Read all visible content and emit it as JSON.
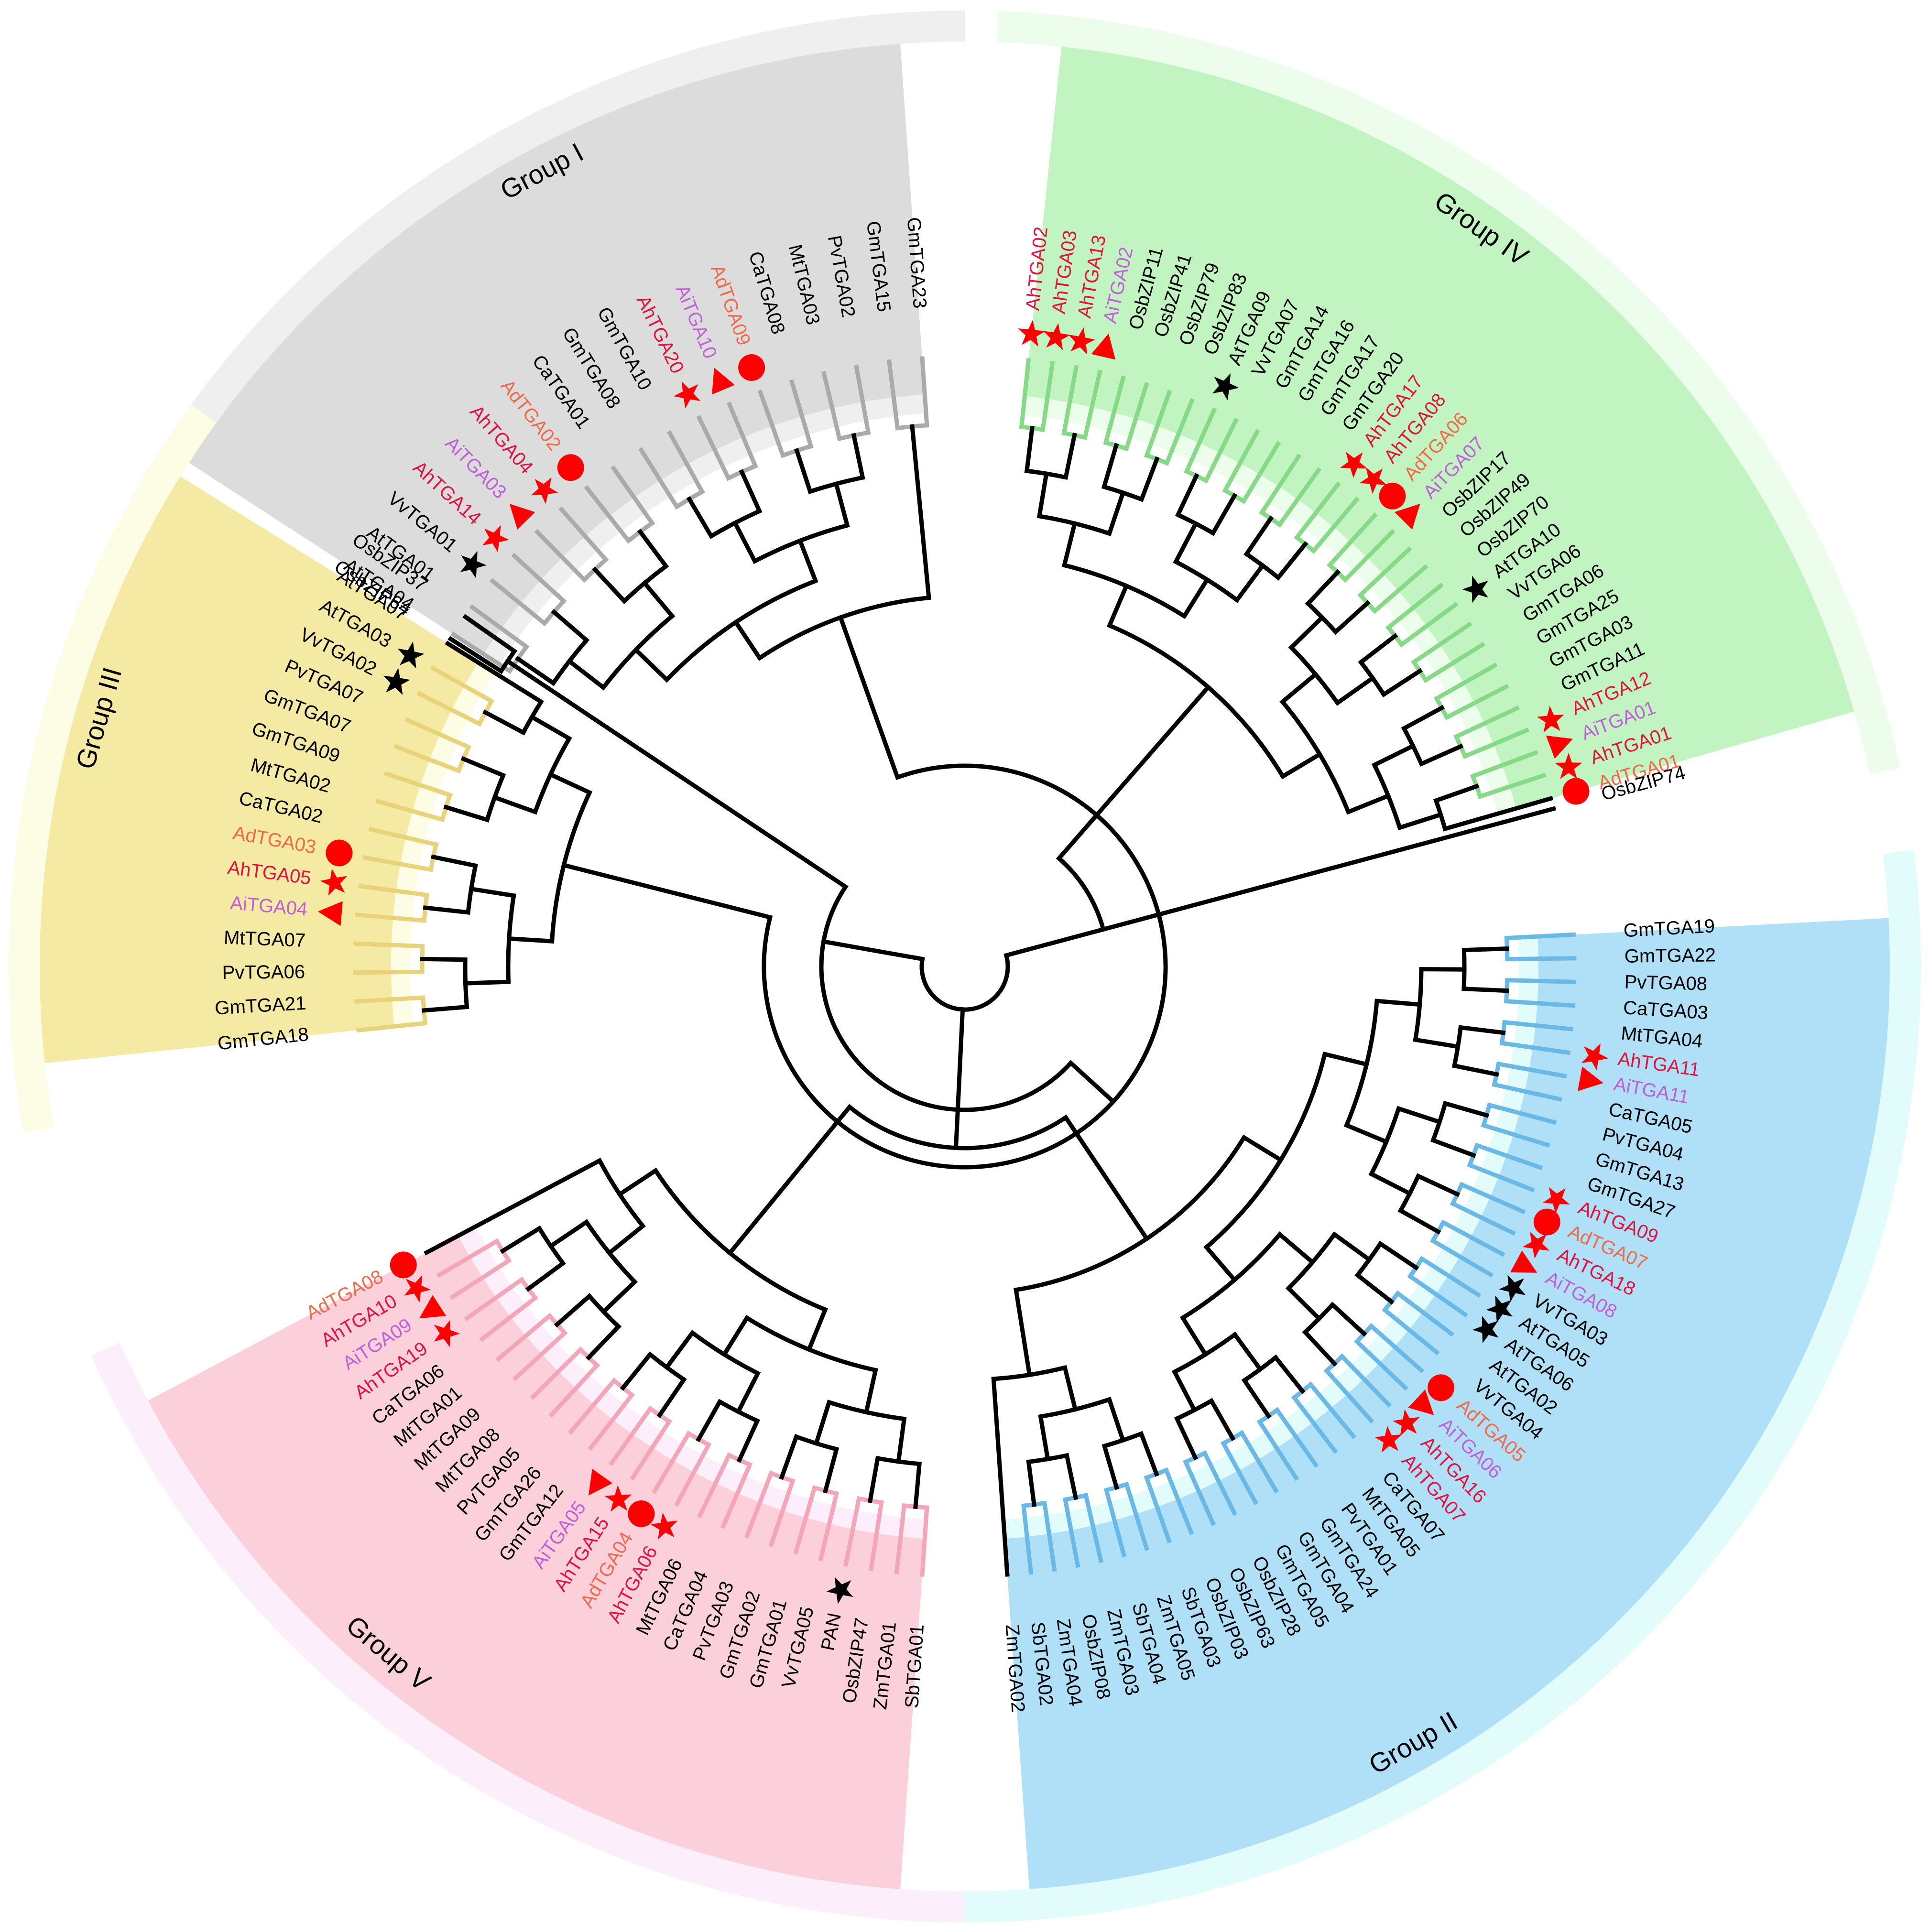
{
  "colors": {
    "Ah": "#e0123e",
    "Ad": "#f06a4a",
    "Ai": "#c060d8",
    "other": "#000000",
    "marker_red": "#ff0000",
    "marker_black": "#000000"
  },
  "groups": [
    {
      "id": "I",
      "label": "Group I",
      "outer_fill": "#efefef",
      "inner_fill": "#dcdcdc",
      "branch": "#aaaaaa",
      "leaves": [
        {
          "name": "AtTGA04",
          "m": ""
        },
        {
          "name": "AtTGA01",
          "m": ""
        },
        {
          "name": "VvTGA01",
          "m": "bstar"
        },
        {
          "name": "AhTGA14",
          "m": "star"
        },
        {
          "name": "AiTGA03",
          "m": "tri"
        },
        {
          "name": "AhTGA04",
          "m": "star"
        },
        {
          "name": "AdTGA02",
          "m": "circle"
        },
        {
          "name": "CaTGA01",
          "m": ""
        },
        {
          "name": "GmTGA08",
          "m": ""
        },
        {
          "name": "GmTGA10",
          "m": ""
        },
        {
          "name": "AhTGA20",
          "m": "star"
        },
        {
          "name": "AiTGA10",
          "m": "tri"
        },
        {
          "name": "AdTGA09",
          "m": "circle"
        },
        {
          "name": "CaTGA08",
          "m": ""
        },
        {
          "name": "MtTGA03",
          "m": ""
        },
        {
          "name": "PvTGA02",
          "m": ""
        },
        {
          "name": "GmTGA15",
          "m": ""
        },
        {
          "name": "GmTGA23",
          "m": ""
        }
      ]
    },
    {
      "id": "IV",
      "label": "Group IV",
      "outer_fill": "#ecfdec",
      "inner_fill": "#c2f4c2",
      "branch": "#86d986",
      "leaves": [
        {
          "name": "AhTGA02",
          "m": "star"
        },
        {
          "name": "AhTGA03",
          "m": "star"
        },
        {
          "name": "AhTGA13",
          "m": "star"
        },
        {
          "name": "AiTGA02",
          "m": "tri"
        },
        {
          "name": "OsbZIP11",
          "m": ""
        },
        {
          "name": "OsbZIP41",
          "m": ""
        },
        {
          "name": "OsbZIP79",
          "m": ""
        },
        {
          "name": "OsbZIP83",
          "m": ""
        },
        {
          "name": "AtTGA09",
          "m": "bstar"
        },
        {
          "name": "VvTGA07",
          "m": ""
        },
        {
          "name": "GmTGA14",
          "m": ""
        },
        {
          "name": "GmTGA16",
          "m": ""
        },
        {
          "name": "GmTGA17",
          "m": ""
        },
        {
          "name": "GmTGA20",
          "m": ""
        },
        {
          "name": "AhTGA17",
          "m": "star"
        },
        {
          "name": "AhTGA08",
          "m": "star"
        },
        {
          "name": "AdTGA06",
          "m": "circle"
        },
        {
          "name": "AiTGA07",
          "m": "tri"
        },
        {
          "name": "OsbZIP17",
          "m": ""
        },
        {
          "name": "OsbZIP49",
          "m": ""
        },
        {
          "name": "OsbZIP70",
          "m": ""
        },
        {
          "name": "AtTGA10",
          "m": "bstar"
        },
        {
          "name": "VvTGA06",
          "m": ""
        },
        {
          "name": "GmTGA06",
          "m": ""
        },
        {
          "name": "GmTGA25",
          "m": ""
        },
        {
          "name": "GmTGA03",
          "m": ""
        },
        {
          "name": "GmTGA11",
          "m": ""
        },
        {
          "name": "AhTGA12",
          "m": "star"
        },
        {
          "name": "AiTGA01",
          "m": "tri"
        },
        {
          "name": "AhTGA01",
          "m": "star"
        },
        {
          "name": "AdTGA01",
          "m": "circle"
        }
      ]
    },
    {
      "id": "II",
      "label": "Group II",
      "outer_fill": "#e2fcfc",
      "inner_fill": "#b0e0f8",
      "branch": "#6ab8e6",
      "leaves": [
        {
          "name": "GmTGA19",
          "m": ""
        },
        {
          "name": "GmTGA22",
          "m": ""
        },
        {
          "name": "PvTGA08",
          "m": ""
        },
        {
          "name": "CaTGA03",
          "m": ""
        },
        {
          "name": "MtTGA04",
          "m": ""
        },
        {
          "name": "AhTGA11",
          "m": "star"
        },
        {
          "name": "AiTGA11",
          "m": "tri"
        },
        {
          "name": "CaTGA05",
          "m": ""
        },
        {
          "name": "PvTGA04",
          "m": ""
        },
        {
          "name": "GmTGA13",
          "m": ""
        },
        {
          "name": "GmTGA27",
          "m": ""
        },
        {
          "name": "AhTGA09",
          "m": "star"
        },
        {
          "name": "AdTGA07",
          "m": "circle"
        },
        {
          "name": "AhTGA18",
          "m": "star"
        },
        {
          "name": "AiTGA08",
          "m": "tri"
        },
        {
          "name": "VvTGA03",
          "m": "bstar"
        },
        {
          "name": "AtTGA05",
          "m": "bstar"
        },
        {
          "name": "AtTGA06",
          "m": "bstar"
        },
        {
          "name": "AtTGA02",
          "m": ""
        },
        {
          "name": "VvTGA04",
          "m": ""
        },
        {
          "name": "AdTGA05",
          "m": "circle"
        },
        {
          "name": "AiTGA06",
          "m": "tri"
        },
        {
          "name": "AhTGA16",
          "m": "star"
        },
        {
          "name": "AhTGA07",
          "m": "star"
        },
        {
          "name": "CaTGA07",
          "m": ""
        },
        {
          "name": "MtTGA05",
          "m": ""
        },
        {
          "name": "PvTGA01",
          "m": ""
        },
        {
          "name": "GmTGA24",
          "m": ""
        },
        {
          "name": "GmTGA04",
          "m": ""
        },
        {
          "name": "GmTGA05",
          "m": ""
        },
        {
          "name": "OsbZIP28",
          "m": ""
        },
        {
          "name": "OsbZIP63",
          "m": ""
        },
        {
          "name": "OsbZIP03",
          "m": ""
        },
        {
          "name": "SbTGA03",
          "m": ""
        },
        {
          "name": "ZmTGA05",
          "m": ""
        },
        {
          "name": "SbTGA04",
          "m": ""
        },
        {
          "name": "ZmTGA03",
          "m": ""
        },
        {
          "name": "OsbZIP08",
          "m": ""
        },
        {
          "name": "ZmTGA04",
          "m": ""
        },
        {
          "name": "SbTGA02",
          "m": ""
        },
        {
          "name": "ZmTGA02",
          "m": ""
        }
      ]
    },
    {
      "id": "V",
      "label": "Group V",
      "outer_fill": "#fdeefb",
      "inner_fill": "#fbd0da",
      "branch": "#f2a6b8",
      "leaves": [
        {
          "name": "SbTGA01",
          "m": ""
        },
        {
          "name": "ZmTGA01",
          "m": ""
        },
        {
          "name": "OsbZIP47",
          "m": ""
        },
        {
          "name": "PAN",
          "m": "bstar"
        },
        {
          "name": "VvTGA05",
          "m": ""
        },
        {
          "name": "GmTGA01",
          "m": ""
        },
        {
          "name": "GmTGA02",
          "m": ""
        },
        {
          "name": "PvTGA03",
          "m": ""
        },
        {
          "name": "CaTGA04",
          "m": ""
        },
        {
          "name": "MtTGA06",
          "m": ""
        },
        {
          "name": "AhTGA06",
          "m": "star"
        },
        {
          "name": "AdTGA04",
          "m": "circle"
        },
        {
          "name": "AhTGA15",
          "m": "star"
        },
        {
          "name": "AiTGA05",
          "m": "tri"
        },
        {
          "name": "GmTGA12",
          "m": ""
        },
        {
          "name": "GmTGA26",
          "m": ""
        },
        {
          "name": "PvTGA05",
          "m": ""
        },
        {
          "name": "MtTGA08",
          "m": ""
        },
        {
          "name": "MtTGA09",
          "m": ""
        },
        {
          "name": "MtTGA01",
          "m": ""
        },
        {
          "name": "CaTGA06",
          "m": ""
        },
        {
          "name": "AhTGA19",
          "m": "star"
        },
        {
          "name": "AiTGA09",
          "m": "tri"
        },
        {
          "name": "AhTGA10",
          "m": "star"
        },
        {
          "name": "AdTGA08",
          "m": "circle"
        }
      ]
    },
    {
      "id": "III",
      "label": "Group III",
      "outer_fill": "#fdfde6",
      "inner_fill": "#f4eaa4",
      "branch": "#e8d37a",
      "leaves": [
        {
          "name": "GmTGA18",
          "m": ""
        },
        {
          "name": "GmTGA21",
          "m": ""
        },
        {
          "name": "PvTGA06",
          "m": ""
        },
        {
          "name": "MtTGA07",
          "m": ""
        },
        {
          "name": "AiTGA04",
          "m": "tri"
        },
        {
          "name": "AhTGA05",
          "m": "star"
        },
        {
          "name": "AdTGA03",
          "m": "circle"
        },
        {
          "name": "CaTGA02",
          "m": ""
        },
        {
          "name": "MtTGA02",
          "m": ""
        },
        {
          "name": "GmTGA09",
          "m": ""
        },
        {
          "name": "GmTGA07",
          "m": ""
        },
        {
          "name": "PvTGA07",
          "m": ""
        },
        {
          "name": "VvTGA02",
          "m": "bstar"
        },
        {
          "name": "AtTGA03",
          "m": "bstar"
        },
        {
          "name": "AtTGA07",
          "m": ""
        }
      ]
    }
  ],
  "outgroups": [
    {
      "name": "OsbZIP74"
    },
    {
      "name": "OsbZIP64"
    },
    {
      "name": "OsbZIP37"
    }
  ]
}
